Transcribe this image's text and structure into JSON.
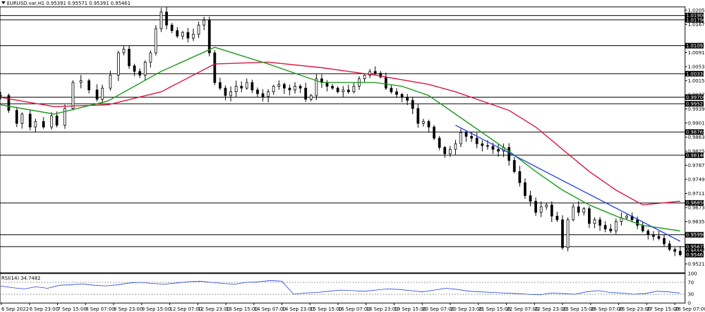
{
  "header": {
    "symbol_line": "EURUSD.var,H1  0.95391 0.95571 0.95391 0.95461"
  },
  "rsi_panel": {
    "label": "RSI(14) 34.7482"
  },
  "chart_data": {
    "type": "candlestick",
    "price_axis": {
      "ylim": [
        0.9497,
        1.0214
      ],
      "ticks": [
        "1.02050",
        "1.01670",
        "1.00910",
        "1.00530",
        "1.00150",
        "0.99770",
        "0.99390",
        "0.99010",
        "0.98630",
        "0.98250",
        "0.97870",
        "0.97490",
        "0.97110",
        "0.96730",
        "0.96350",
        "0.95970",
        "0.95590",
        "0.95210"
      ],
      "tick_values": [
        1.0205,
        1.0167,
        1.0091,
        1.0053,
        1.0015,
        0.9977,
        0.9939,
        0.9901,
        0.9863,
        0.9825,
        0.9787,
        0.9749,
        0.9711,
        0.9673,
        0.9635,
        0.9597,
        0.9559,
        0.9521
      ]
    },
    "time_axis": {
      "labels": [
        "6 Sep 2022",
        "6 Sep 23:00",
        "7 Sep 15:00",
        "8 Sep 07:00",
        "8 Sep 23:00",
        "9 Sep 15:00",
        "12 Sep 07:00",
        "12 Sep 23:00",
        "13 Sep 15:00",
        "14 Sep 07:00",
        "14 Sep 23:00",
        "15 Sep 15:00",
        "16 Sep 07:00",
        "16 Sep 23:00",
        "19 Sep 15:00",
        "20 Sep 07:00",
        "20 Sep 23:00",
        "21 Sep 15:00",
        "22 Sep 07:00",
        "22 Sep 23:00",
        "23 Sep 15:00",
        "26 Sep 07:00",
        "26 Sep 23:00",
        "27 Sep 15:00",
        "28 Sep 07:00"
      ]
    },
    "horizontal_levels": [
      {
        "value": 1.01906,
        "label": "1.01906"
      },
      {
        "value": 1.0179,
        "label": "1.01790"
      },
      {
        "value": 1.01093,
        "label": "1.01093"
      },
      {
        "value": 1.00338,
        "label": "1.00338"
      },
      {
        "value": 0.99706,
        "label": "0.99706"
      },
      {
        "value": 0.99527,
        "label": "0.99527"
      },
      {
        "value": 0.98765,
        "label": "0.98765"
      },
      {
        "value": 0.9814,
        "label": "0.98140"
      },
      {
        "value": 0.96856,
        "label": "0.96856"
      },
      {
        "value": 0.95996,
        "label": "0.95996"
      },
      {
        "value": 0.95677,
        "label": "0.95677"
      }
    ],
    "extra_badges": [
      {
        "value": 0.9555,
        "label": "0.95550"
      },
      {
        "value": 0.95461,
        "label": "0.95461"
      }
    ],
    "price_path": [
      [
        0,
        0.9975
      ],
      [
        3,
        0.9935
      ],
      [
        6,
        0.99
      ],
      [
        8,
        0.9925
      ],
      [
        11,
        0.989
      ],
      [
        13,
        0.9905
      ],
      [
        16,
        0.989
      ],
      [
        19,
        0.992
      ],
      [
        21,
        0.9895
      ],
      [
        24,
        0.994
      ],
      [
        27,
        1.001
      ],
      [
        30,
        1.0015
      ],
      [
        33,
        0.999
      ],
      [
        36,
        0.9965
      ],
      [
        38,
        0.9995
      ],
      [
        41,
        1.003
      ],
      [
        44,
        1.009
      ],
      [
        46,
        1.01
      ],
      [
        48,
        1.0055
      ],
      [
        50,
        1.004
      ],
      [
        52,
        1.003
      ],
      [
        54,
        1.0065
      ],
      [
        56,
        1.009
      ],
      [
        58,
        1.0155
      ],
      [
        60,
        1.02
      ],
      [
        62,
        1.0165
      ],
      [
        64,
        1.015
      ],
      [
        66,
        1.0135
      ],
      [
        68,
        1.0145
      ],
      [
        70,
        1.013
      ],
      [
        72,
        1.014
      ],
      [
        74,
        1.0165
      ],
      [
        76,
        1.0178
      ],
      [
        78,
        1.009
      ],
      [
        80,
        1.001
      ],
      [
        82,
        0.9995
      ],
      [
        84,
        0.9975
      ],
      [
        86,
        0.9985
      ],
      [
        88,
        1.0
      ],
      [
        90,
        0.9995
      ],
      [
        92,
        1.001
      ],
      [
        94,
        0.999
      ],
      [
        96,
        0.998
      ],
      [
        98,
        0.9972
      ],
      [
        100,
        0.9985
      ],
      [
        102,
        1.0
      ],
      [
        104,
        1.0005
      ],
      [
        106,
        0.9995
      ],
      [
        108,
        0.999
      ],
      [
        110,
        1.0
      ],
      [
        112,
        0.9995
      ],
      [
        114,
        0.9965
      ],
      [
        116,
        0.9975
      ],
      [
        118,
        1.002
      ],
      [
        120,
        1.001
      ],
      [
        122,
        1.0
      ],
      [
        124,
        0.9995
      ],
      [
        126,
        0.9985
      ],
      [
        128,
        0.999
      ],
      [
        130,
        0.9985
      ],
      [
        132,
        1.0
      ],
      [
        134,
        1.002
      ],
      [
        136,
        1.003
      ],
      [
        138,
        1.004
      ],
      [
        140,
        1.0035
      ],
      [
        142,
        1.0025
      ],
      [
        144,
        0.9995
      ],
      [
        146,
        0.9985
      ],
      [
        148,
        0.9978
      ],
      [
        150,
        0.997
      ],
      [
        152,
        0.9962
      ],
      [
        154,
        0.994
      ],
      [
        156,
        0.99
      ],
      [
        158,
        0.9905
      ],
      [
        160,
        0.989
      ],
      [
        162,
        0.986
      ],
      [
        164,
        0.9835
      ],
      [
        166,
        0.9818
      ],
      [
        168,
        0.983
      ],
      [
        170,
        0.9845
      ],
      [
        172,
        0.9875
      ],
      [
        174,
        0.9865
      ],
      [
        176,
        0.986
      ],
      [
        178,
        0.9845
      ],
      [
        180,
        0.984
      ],
      [
        182,
        0.9838
      ],
      [
        184,
        0.983
      ],
      [
        186,
        0.9825
      ],
      [
        188,
        0.9835
      ],
      [
        190,
        0.98
      ],
      [
        192,
        0.977
      ],
      [
        194,
        0.974
      ],
      [
        196,
        0.9705
      ],
      [
        198,
        0.969
      ],
      [
        200,
        0.966
      ],
      [
        202,
        0.9675
      ],
      [
        204,
        0.968
      ],
      [
        206,
        0.965
      ],
      [
        208,
        0.964
      ],
      [
        210,
        0.9565
      ],
      [
        212,
        0.964
      ],
      [
        214,
        0.9675
      ],
      [
        216,
        0.966
      ],
      [
        218,
        0.967
      ],
      [
        220,
        0.963
      ],
      [
        222,
        0.964
      ],
      [
        224,
        0.9625
      ],
      [
        226,
        0.9615
      ],
      [
        228,
        0.961
      ],
      [
        230,
        0.9635
      ],
      [
        232,
        0.9645
      ],
      [
        234,
        0.965
      ],
      [
        236,
        0.964
      ],
      [
        238,
        0.9625
      ],
      [
        240,
        0.961
      ],
      [
        242,
        0.96
      ],
      [
        244,
        0.9595
      ],
      [
        246,
        0.959
      ],
      [
        248,
        0.9575
      ],
      [
        250,
        0.956
      ],
      [
        252,
        0.9555
      ],
      [
        254,
        0.9546
      ]
    ],
    "ma_green": [
      [
        0,
        0.995
      ],
      [
        20,
        0.9925
      ],
      [
        40,
        0.996
      ],
      [
        60,
        1.004
      ],
      [
        80,
        1.0105
      ],
      [
        100,
        1.006
      ],
      [
        120,
        1.001
      ],
      [
        140,
        1.001
      ],
      [
        150,
        1.0
      ],
      [
        160,
        0.9975
      ],
      [
        170,
        0.9925
      ],
      [
        180,
        0.9875
      ],
      [
        190,
        0.9825
      ],
      [
        200,
        0.977
      ],
      [
        210,
        0.972
      ],
      [
        220,
        0.968
      ],
      [
        230,
        0.965
      ],
      [
        240,
        0.9625
      ],
      [
        254,
        0.961
      ]
    ],
    "ma_red": [
      [
        0,
        0.997
      ],
      [
        20,
        0.9945
      ],
      [
        40,
        0.995
      ],
      [
        60,
        0.9985
      ],
      [
        80,
        1.006
      ],
      [
        100,
        1.0065
      ],
      [
        120,
        1.005
      ],
      [
        140,
        1.003
      ],
      [
        160,
        1.0005
      ],
      [
        170,
        0.9985
      ],
      [
        180,
        0.996
      ],
      [
        190,
        0.9935
      ],
      [
        200,
        0.989
      ],
      [
        210,
        0.983
      ],
      [
        220,
        0.977
      ],
      [
        230,
        0.972
      ],
      [
        240,
        0.968
      ],
      [
        254,
        0.969
      ]
    ],
    "trend_line": {
      "start": [
        170,
        0.9895
      ],
      "end": [
        254,
        0.9582
      ]
    },
    "rsi": {
      "levels": [
        100,
        70,
        30,
        0
      ],
      "values": [
        58,
        52,
        48,
        55,
        50,
        60,
        62,
        65,
        60,
        58,
        62,
        68,
        70,
        66,
        64,
        68,
        72,
        74,
        70,
        66,
        64,
        70,
        72,
        76,
        74,
        30,
        34,
        36,
        40,
        44,
        42,
        40,
        44,
        48,
        46,
        42,
        38,
        44,
        50,
        46,
        40,
        38,
        36,
        34,
        32,
        30,
        28,
        34,
        32,
        30,
        38,
        42,
        36,
        34,
        30,
        32,
        40,
        38,
        34
      ]
    }
  }
}
